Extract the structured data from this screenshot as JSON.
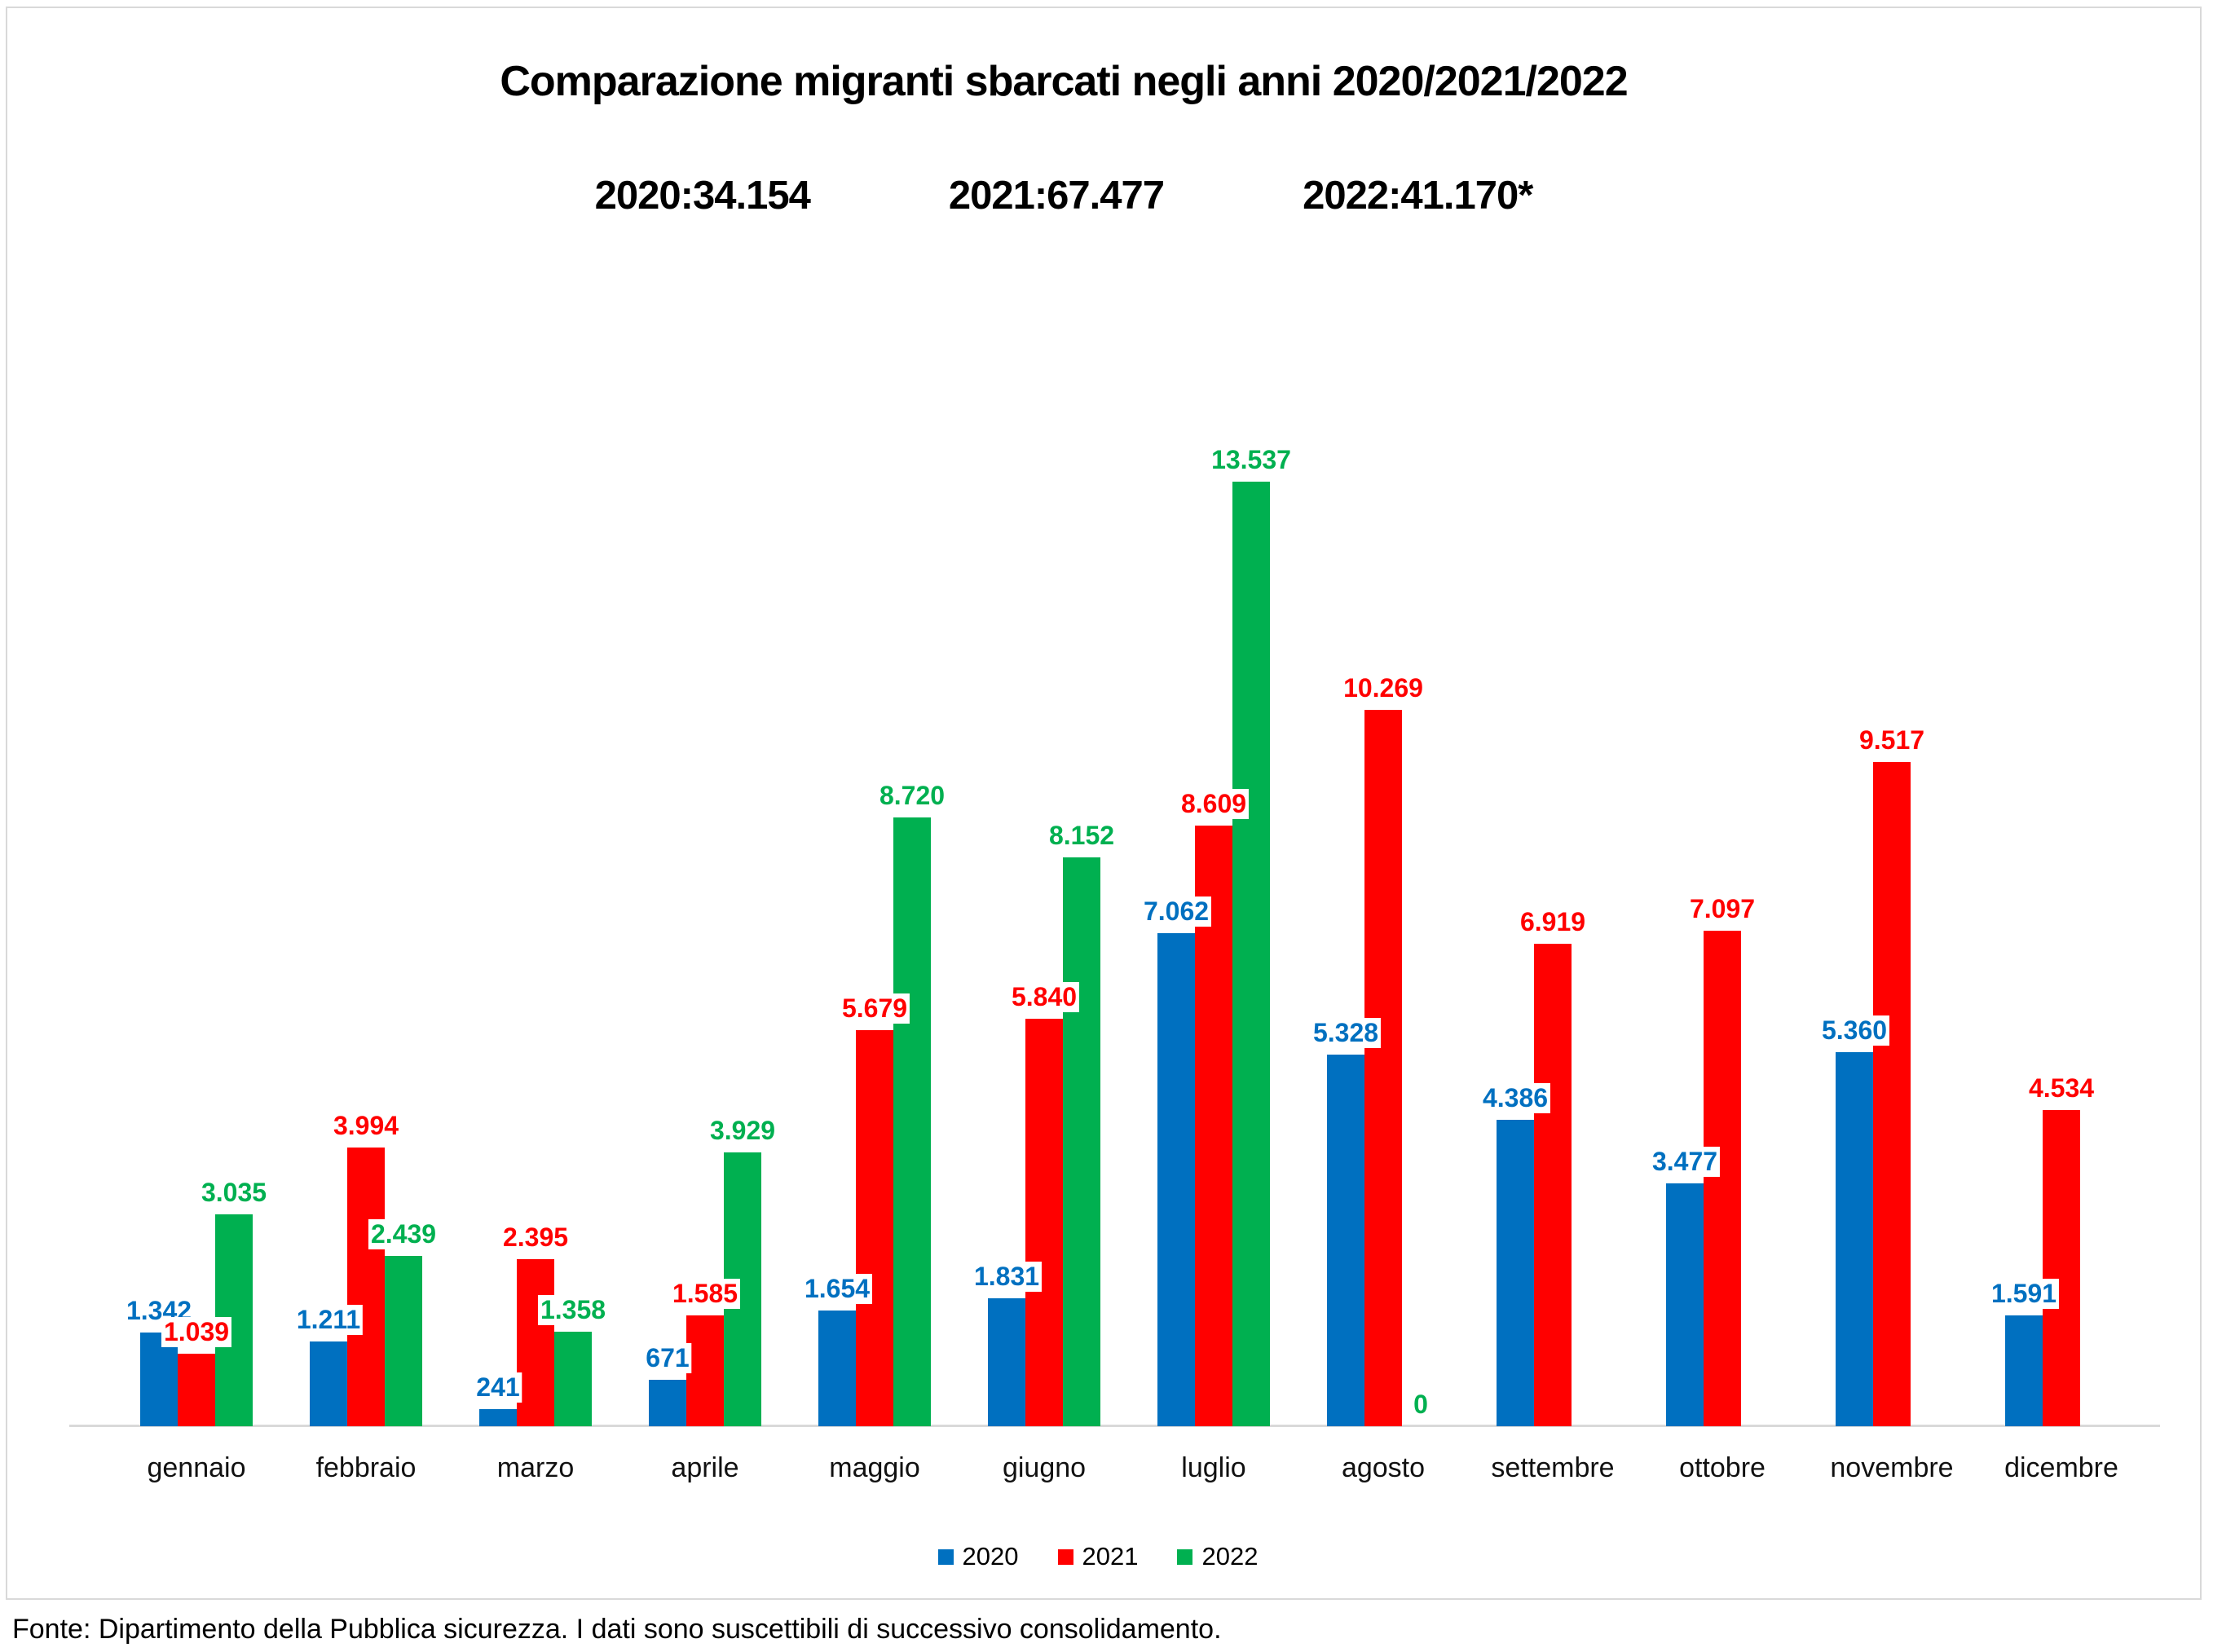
{
  "chart_data": {
    "type": "bar",
    "title": "Comparazione migranti sbarcati negli anni 2020/2021/2022",
    "subtitle_items": [
      "2020:34.154",
      "2021:67.477",
      "2022:41.170*"
    ],
    "categories": [
      "gennaio",
      "febbraio",
      "marzo",
      "aprile",
      "maggio",
      "giugno",
      "luglio",
      "agosto",
      "settembre",
      "ottobre",
      "novembre",
      "dicembre"
    ],
    "series": [
      {
        "name": "2020",
        "color": "#0070C0",
        "values": [
          1342,
          1211,
          241,
          671,
          1654,
          1831,
          7062,
          5328,
          4386,
          3477,
          5360,
          1591
        ]
      },
      {
        "name": "2021",
        "color": "#FF0000",
        "values": [
          1039,
          3994,
          2395,
          1585,
          5679,
          5840,
          8609,
          10269,
          6919,
          7097,
          9517,
          4534
        ]
      },
      {
        "name": "2022",
        "color": "#00B050",
        "values": [
          3035,
          2439,
          1358,
          3929,
          8720,
          8152,
          13537,
          0,
          null,
          null,
          null,
          null
        ]
      }
    ],
    "ylim": [
      0,
      13537
    ],
    "grid": false,
    "legend_position": "bottom",
    "value_label_format": "thousands-dot",
    "axis_color": "#D9D9D9",
    "background_color": "#FFFFFF",
    "frame_border_color": "#D9D9D9"
  },
  "footer": {
    "text": "Fonte: Dipartimento della Pubblica sicurezza. I dati sono suscettibili di successivo consolidamento."
  }
}
